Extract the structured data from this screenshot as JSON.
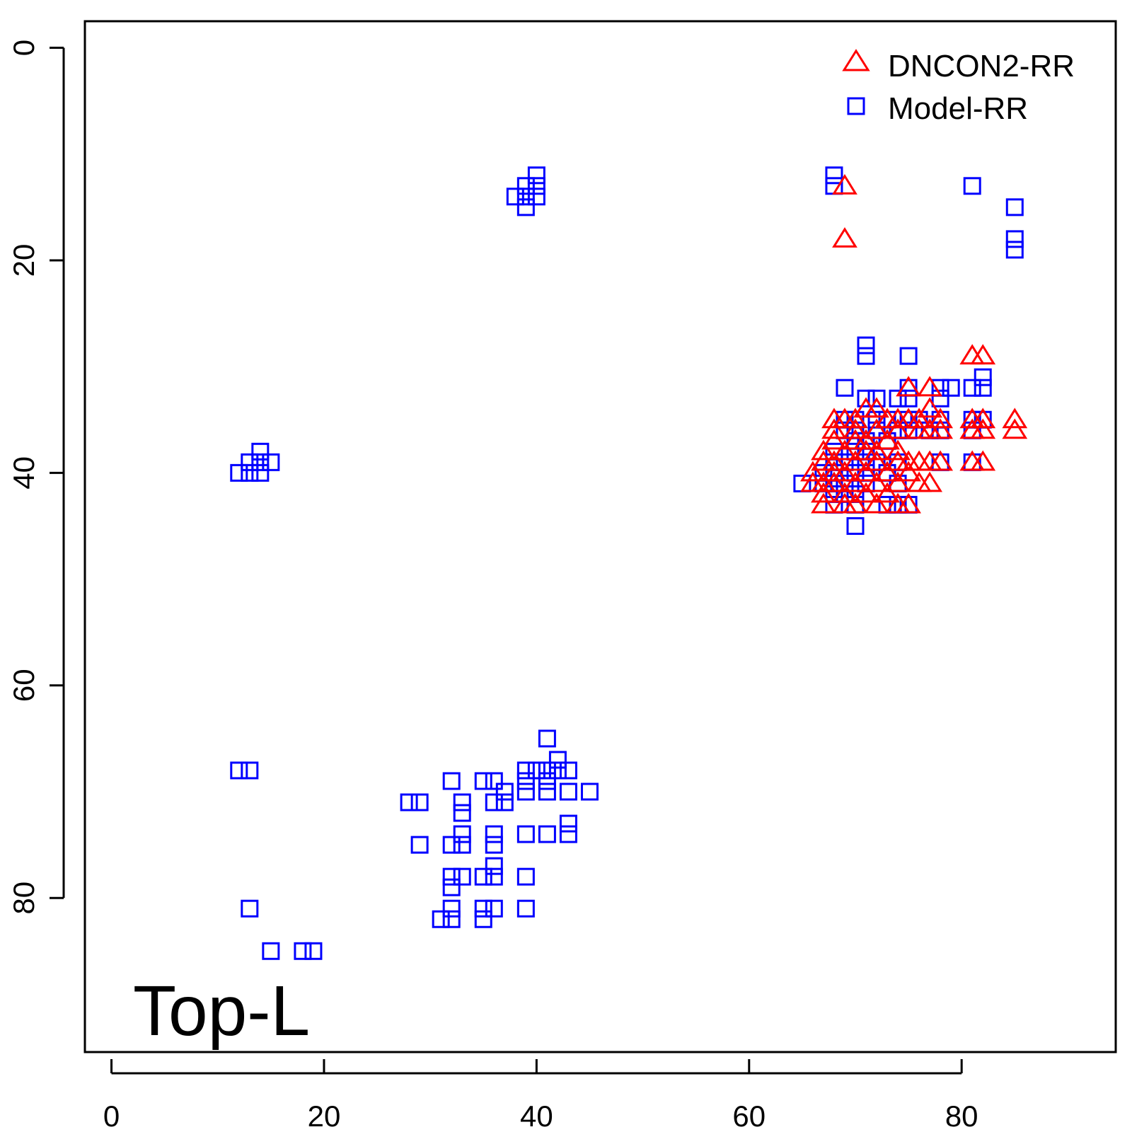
{
  "chart_data": {
    "type": "scatter",
    "title": "",
    "xlabel": "",
    "ylabel": "",
    "annotation": "Top-L",
    "xlim": [
      -2.5,
      94.5
    ],
    "ylim": [
      -2.5,
      94.5
    ],
    "y_reversed": true,
    "x_ticks": [
      "0",
      "20",
      "40",
      "60",
      "80"
    ],
    "y_ticks": [
      "0",
      "20",
      "40",
      "60",
      "80"
    ],
    "grid": false,
    "legend_position": "top-right",
    "series": [
      {
        "name": "DNCON2-RR",
        "marker": "triangle",
        "color": "#ff0000",
        "points": [
          [
            69,
            13
          ],
          [
            69,
            18
          ],
          [
            81,
            29
          ],
          [
            82,
            29
          ],
          [
            75,
            32
          ],
          [
            77,
            32
          ],
          [
            68,
            35
          ],
          [
            69,
            35
          ],
          [
            70,
            35
          ],
          [
            71,
            34
          ],
          [
            72,
            34
          ],
          [
            73,
            35
          ],
          [
            74,
            35
          ],
          [
            75,
            35
          ],
          [
            76,
            35
          ],
          [
            77,
            34
          ],
          [
            78,
            35
          ],
          [
            81,
            35
          ],
          [
            82,
            35
          ],
          [
            85,
            35
          ],
          [
            68,
            36
          ],
          [
            70,
            36
          ],
          [
            72,
            36
          ],
          [
            74,
            36
          ],
          [
            76,
            36
          ],
          [
            77,
            36
          ],
          [
            78,
            36
          ],
          [
            81,
            36
          ],
          [
            82,
            36
          ],
          [
            85,
            36
          ],
          [
            68,
            37
          ],
          [
            70,
            37
          ],
          [
            71,
            37
          ],
          [
            73,
            37
          ],
          [
            67,
            38
          ],
          [
            69,
            38
          ],
          [
            71,
            38
          ],
          [
            72,
            38
          ],
          [
            74,
            38
          ],
          [
            67,
            39
          ],
          [
            68,
            39
          ],
          [
            70,
            39
          ],
          [
            72,
            39
          ],
          [
            74,
            39
          ],
          [
            75,
            39
          ],
          [
            76,
            39
          ],
          [
            77,
            39
          ],
          [
            78,
            39
          ],
          [
            81,
            39
          ],
          [
            82,
            39
          ],
          [
            66,
            40
          ],
          [
            68,
            40
          ],
          [
            69,
            40
          ],
          [
            71,
            40
          ],
          [
            73,
            40
          ],
          [
            75,
            40
          ],
          [
            66,
            41
          ],
          [
            67,
            41
          ],
          [
            68,
            41
          ],
          [
            70,
            41
          ],
          [
            72,
            41
          ],
          [
            74,
            41
          ],
          [
            76,
            41
          ],
          [
            77,
            41
          ],
          [
            67,
            42
          ],
          [
            69,
            42
          ],
          [
            71,
            42
          ],
          [
            73,
            42
          ],
          [
            67,
            43
          ],
          [
            69,
            43
          ],
          [
            70,
            43
          ],
          [
            72,
            43
          ],
          [
            74,
            43
          ],
          [
            75,
            43
          ]
        ]
      },
      {
        "name": "Model-RR",
        "marker": "square",
        "color": "#0000ff",
        "points": [
          [
            40,
            12
          ],
          [
            39,
            13
          ],
          [
            40,
            13
          ],
          [
            38,
            14
          ],
          [
            39,
            14
          ],
          [
            40,
            14
          ],
          [
            39,
            15
          ],
          [
            68,
            12
          ],
          [
            68,
            13
          ],
          [
            81,
            13
          ],
          [
            85,
            15
          ],
          [
            85,
            18
          ],
          [
            85,
            19
          ],
          [
            71,
            28
          ],
          [
            71,
            29
          ],
          [
            75,
            29
          ],
          [
            69,
            32
          ],
          [
            75,
            32
          ],
          [
            78,
            32
          ],
          [
            79,
            32
          ],
          [
            81,
            32
          ],
          [
            82,
            31
          ],
          [
            82,
            32
          ],
          [
            71,
            33
          ],
          [
            72,
            33
          ],
          [
            74,
            33
          ],
          [
            75,
            33
          ],
          [
            78,
            33
          ],
          [
            69,
            35
          ],
          [
            70,
            35
          ],
          [
            72,
            35
          ],
          [
            73,
            35
          ],
          [
            75,
            35
          ],
          [
            76,
            35
          ],
          [
            78,
            35
          ],
          [
            81,
            35
          ],
          [
            82,
            35
          ],
          [
            69,
            36
          ],
          [
            70,
            36
          ],
          [
            72,
            36
          ],
          [
            74,
            36
          ],
          [
            75,
            36
          ],
          [
            77,
            36
          ],
          [
            78,
            36
          ],
          [
            81,
            36
          ],
          [
            70,
            37
          ],
          [
            71,
            37
          ],
          [
            73,
            37
          ],
          [
            68,
            38
          ],
          [
            70,
            38
          ],
          [
            71,
            38
          ],
          [
            68,
            39
          ],
          [
            69,
            39
          ],
          [
            71,
            39
          ],
          [
            72,
            39
          ],
          [
            74,
            39
          ],
          [
            78,
            39
          ],
          [
            81,
            39
          ],
          [
            67,
            40
          ],
          [
            68,
            40
          ],
          [
            70,
            40
          ],
          [
            71,
            40
          ],
          [
            73,
            40
          ],
          [
            65,
            41
          ],
          [
            67,
            41
          ],
          [
            68,
            41
          ],
          [
            69,
            41
          ],
          [
            71,
            41
          ],
          [
            74,
            41
          ],
          [
            68,
            42
          ],
          [
            69,
            42
          ],
          [
            70,
            42
          ],
          [
            68,
            43
          ],
          [
            70,
            43
          ],
          [
            73,
            43
          ],
          [
            74,
            43
          ],
          [
            75,
            43
          ],
          [
            70,
            45
          ],
          [
            14,
            38
          ],
          [
            13,
            39
          ],
          [
            14,
            39
          ],
          [
            15,
            39
          ],
          [
            12,
            40
          ],
          [
            13,
            40
          ],
          [
            14,
            40
          ],
          [
            12,
            68
          ],
          [
            13,
            68
          ],
          [
            13,
            81
          ],
          [
            15,
            85
          ],
          [
            18,
            85
          ],
          [
            19,
            85
          ],
          [
            41,
            65
          ],
          [
            42,
            67
          ],
          [
            39,
            68
          ],
          [
            40,
            68
          ],
          [
            41,
            68
          ],
          [
            42,
            68
          ],
          [
            43,
            68
          ],
          [
            32,
            69
          ],
          [
            35,
            69
          ],
          [
            36,
            69
          ],
          [
            39,
            69
          ],
          [
            41,
            69
          ],
          [
            37,
            70
          ],
          [
            39,
            70
          ],
          [
            41,
            70
          ],
          [
            43,
            70
          ],
          [
            45,
            70
          ],
          [
            36,
            71
          ],
          [
            37,
            71
          ],
          [
            28,
            71
          ],
          [
            29,
            71
          ],
          [
            33,
            71
          ],
          [
            33,
            72
          ],
          [
            43,
            73
          ],
          [
            33,
            74
          ],
          [
            36,
            74
          ],
          [
            39,
            74
          ],
          [
            41,
            74
          ],
          [
            43,
            74
          ],
          [
            29,
            75
          ],
          [
            32,
            75
          ],
          [
            33,
            75
          ],
          [
            36,
            75
          ],
          [
            36,
            77
          ],
          [
            32,
            78
          ],
          [
            33,
            78
          ],
          [
            35,
            78
          ],
          [
            36,
            78
          ],
          [
            39,
            78
          ],
          [
            32,
            79
          ],
          [
            32,
            81
          ],
          [
            35,
            81
          ],
          [
            36,
            81
          ],
          [
            39,
            81
          ],
          [
            31,
            82
          ],
          [
            32,
            82
          ],
          [
            35,
            82
          ]
        ]
      }
    ]
  }
}
